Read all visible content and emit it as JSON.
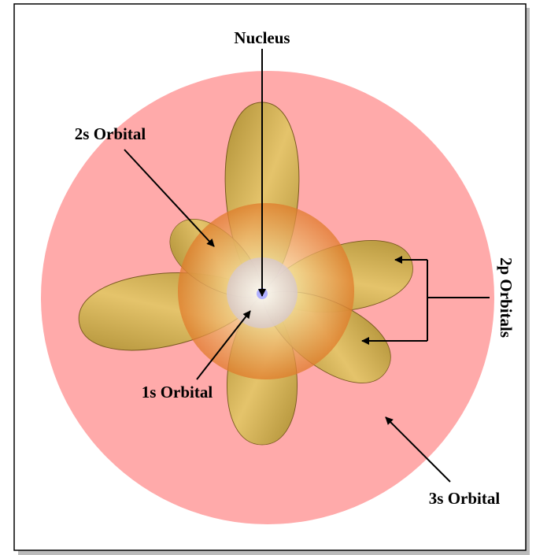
{
  "labels": {
    "nucleus": "Nucleus",
    "orbital_2s": "2s Orbital",
    "orbital_1s": "1s Orbital",
    "orbitals_2p": "2p Orbitals",
    "orbital_3s": "3s Orbital"
  }
}
